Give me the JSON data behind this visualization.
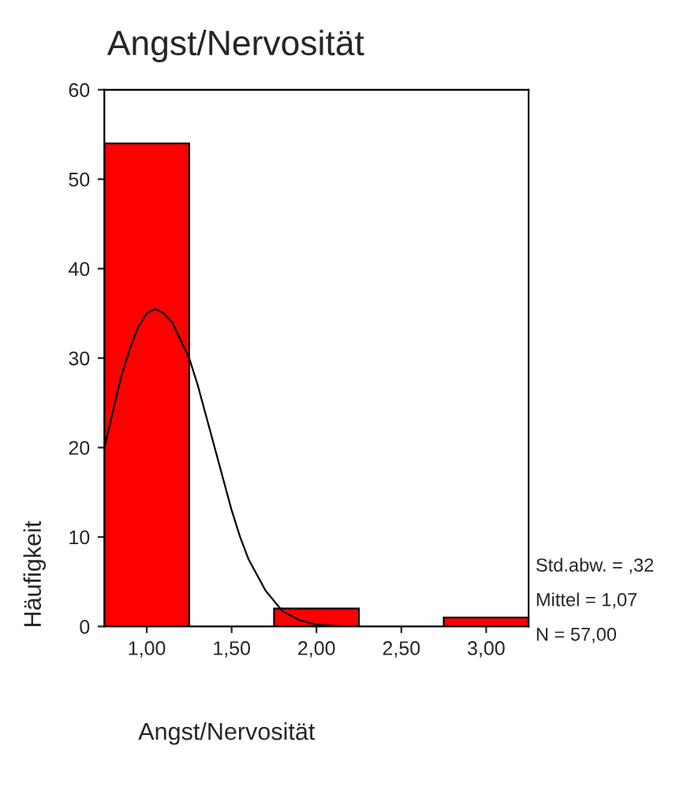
{
  "chart_data": {
    "type": "histogram",
    "title": "Angst/Nervosität",
    "xlabel": "Angst/Nervosität",
    "ylabel": "Häufigkeit",
    "bins": [
      0.75,
      1.25,
      1.75,
      2.25,
      2.75,
      3.25
    ],
    "values": [
      54,
      0,
      2,
      0,
      1
    ],
    "color": "#ff0000",
    "series": [
      {
        "type": "line",
        "color": "#000000",
        "x": [
          0.75,
          0.8,
          0.85,
          0.9,
          0.95,
          1.0,
          1.05,
          1.1,
          1.15,
          1.2,
          1.25,
          1.3,
          1.35,
          1.4,
          1.45,
          1.5,
          1.55,
          1.6,
          1.7,
          1.8,
          1.9,
          2.0,
          2.1,
          2.2
        ],
        "values": [
          20,
          24,
          28,
          31,
          33.5,
          35,
          35.5,
          35,
          34,
          32,
          30,
          27,
          23.5,
          20,
          16.5,
          13,
          10,
          7.5,
          4,
          1.7,
          0.7,
          0.2,
          0.1,
          0
        ]
      }
    ],
    "xlim": [
      0.75,
      3.25
    ],
    "xticks": [
      {
        "value": 1,
        "label": "1,00"
      },
      {
        "value": 1.5,
        "label": "1,50"
      },
      {
        "value": 2,
        "label": "2,00"
      },
      {
        "value": 2.5,
        "label": "2,50"
      },
      {
        "value": 3,
        "label": "3,00"
      }
    ],
    "ylim": [
      0,
      60
    ],
    "yticks": [
      0,
      10,
      20,
      30,
      40,
      50,
      60
    ],
    "annotations": [
      "Std.abw. = ,32",
      "Mittel = 1,07",
      "N = 57,00"
    ]
  }
}
